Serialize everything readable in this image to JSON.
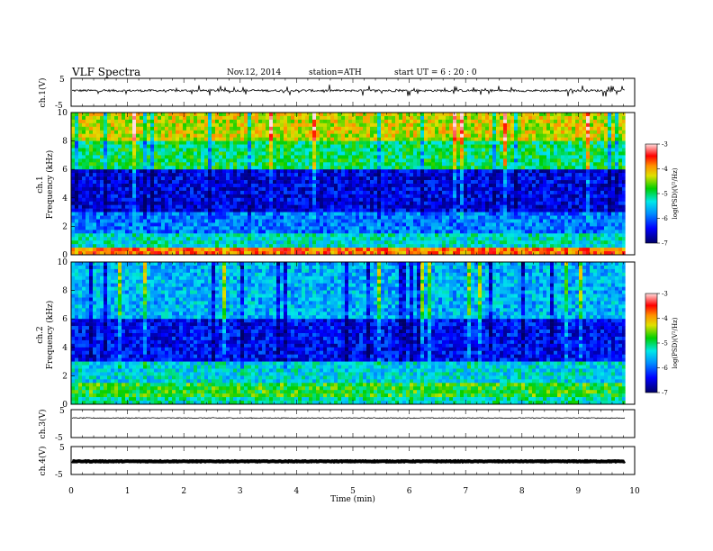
{
  "header": {
    "title": "VLF  Spectra",
    "date": "Nov.12, 2014",
    "station": "station=ATH",
    "start": "start  UT =   6  : 20 : 0"
  },
  "chart_data": {
    "type": "heatmap",
    "xlabel": "Time  (min)",
    "xlim": [
      0,
      10
    ],
    "xticks": [
      "0",
      "1",
      "2",
      "3",
      "4",
      "5",
      "6",
      "7",
      "8",
      "9",
      "10"
    ],
    "data_end_min": 9.83,
    "panels": [
      {
        "kind": "waveform",
        "ylabel": "ch.1(V)",
        "ylim": [
          -5,
          5
        ],
        "yticks": [
          "5",
          "-5"
        ],
        "baseline_v": 0.6,
        "noise_v": 0.4,
        "spike_v": 2.0
      },
      {
        "kind": "spectrogram",
        "channel_label": "ch.1",
        "ylabel": "Frequency  (kHz)",
        "ylim": [
          0,
          10
        ],
        "yticks": [
          "0",
          "2",
          "4",
          "6",
          "8",
          "10"
        ],
        "colorbar": {
          "label": "log(PSD)(V²/Hz)",
          "range": [
            -7,
            -3
          ],
          "ticks": [
            "-3",
            "-4",
            "-5",
            "-6",
            "-7"
          ]
        },
        "bands_log_psd": [
          {
            "f": [
              8.0,
              10.0
            ],
            "level": -4.3
          },
          {
            "f": [
              6.0,
              8.0
            ],
            "level": -5.0
          },
          {
            "f": [
              3.0,
              6.0
            ],
            "level": -6.5
          },
          {
            "f": [
              1.5,
              3.0
            ],
            "level": -5.9
          },
          {
            "f": [
              0.5,
              1.5
            ],
            "level": -5.3
          },
          {
            "f": [
              0.0,
              0.5
            ],
            "level": -3.8
          }
        ]
      },
      {
        "kind": "spectrogram",
        "channel_label": "ch.2",
        "ylabel": "Frequency  (kHz)",
        "ylim": [
          0,
          10
        ],
        "yticks": [
          "0",
          "2",
          "4",
          "6",
          "8",
          "10"
        ],
        "colorbar": {
          "label": "log(PSD)(V²/Hz)",
          "range": [
            -7,
            -3
          ],
          "ticks": [
            "-3",
            "-4",
            "-5",
            "-6",
            "-7"
          ]
        },
        "bands_log_psd": [
          {
            "f": [
              6.0,
              10.0
            ],
            "level": -5.6
          },
          {
            "f": [
              3.0,
              6.0
            ],
            "level": -6.4
          },
          {
            "f": [
              1.5,
              3.0
            ],
            "level": -5.4
          },
          {
            "f": [
              0.5,
              1.5
            ],
            "level": -4.8
          },
          {
            "f": [
              0.0,
              0.5
            ],
            "level": -5.2
          }
        ]
      },
      {
        "kind": "waveform",
        "ylabel": "ch.3(V)",
        "ylim": [
          -5,
          5
        ],
        "yticks": [
          "5",
          "-5"
        ],
        "baseline_v": 2.0,
        "noise_v": 0.15,
        "spike_v": 0
      },
      {
        "kind": "waveform",
        "ylabel": "ch.4(V)",
        "ylim": [
          -5,
          5
        ],
        "yticks": [
          "5",
          "-5"
        ],
        "baseline_v": -0.3,
        "noise_v": 0.12,
        "spike_v": 0
      }
    ]
  }
}
